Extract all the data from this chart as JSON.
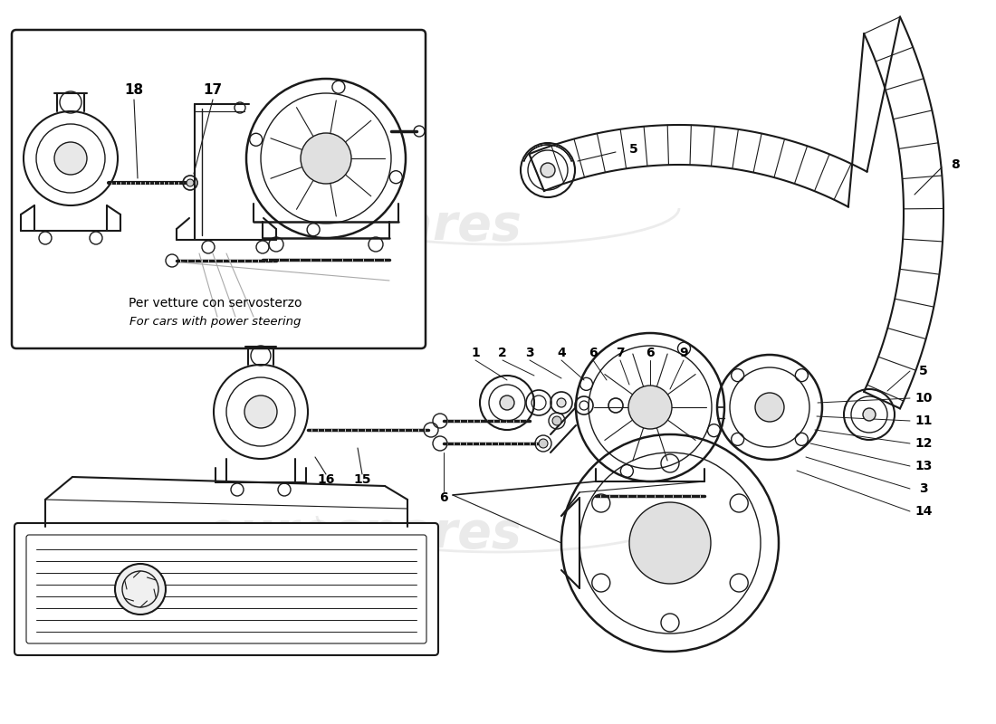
{
  "bg_color": "#ffffff",
  "line_color": "#1a1a1a",
  "watermark_text": "eurospares",
  "watermark_color": "#cccccc",
  "watermark_alpha": 0.4,
  "fig_w": 11.0,
  "fig_h": 8.0,
  "dpi": 100
}
